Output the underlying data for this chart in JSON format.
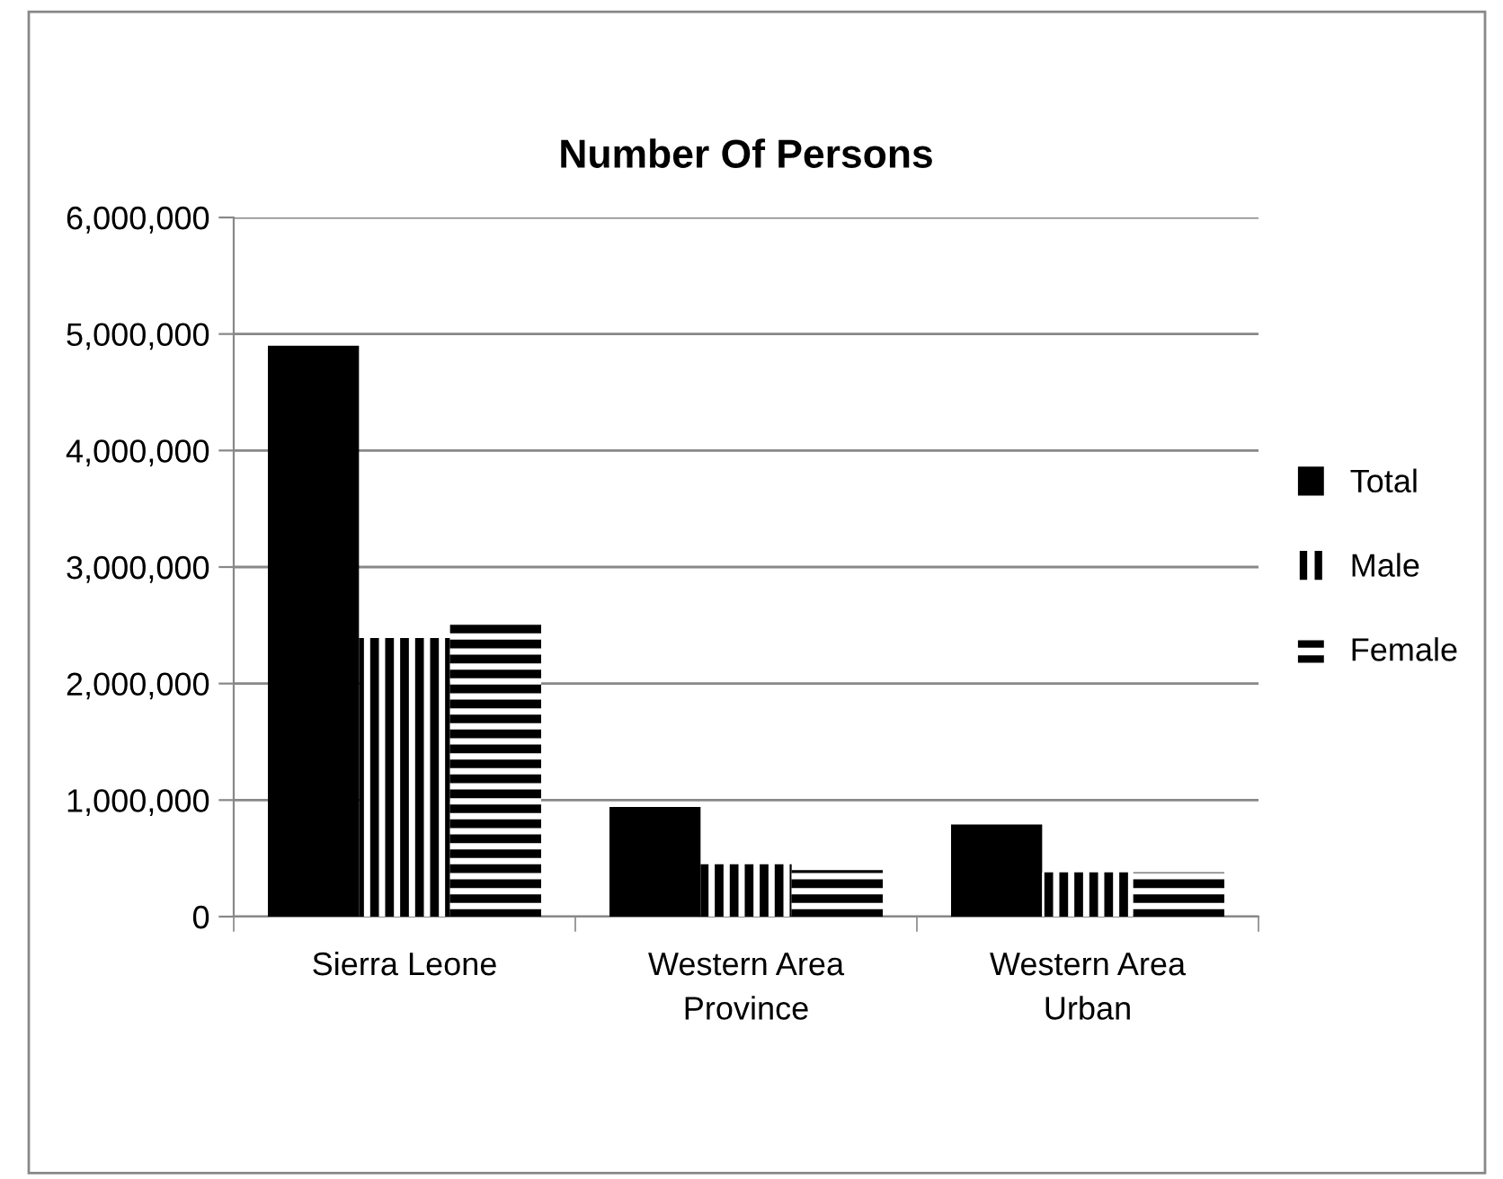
{
  "chart_data": {
    "type": "bar",
    "title": "Number Of Persons",
    "categories": [
      "Sierra Leone",
      "Western Area\nProvince",
      "Western Area\nUrban"
    ],
    "series": [
      {
        "name": "Total",
        "color": "#000000",
        "values": [
          4900000,
          940000,
          790000
        ]
      },
      {
        "name": "Male",
        "color": "#000000",
        "values": [
          2390000,
          450000,
          380000
        ]
      },
      {
        "name": "Female",
        "color": "#000000",
        "values": [
          2530000,
          400000,
          380000
        ]
      }
    ],
    "ylim": [
      0,
      6000000
    ],
    "yticks": [
      {
        "value": 0,
        "label": "0"
      },
      {
        "value": 1000000,
        "label": "1,000,000"
      },
      {
        "value": 2000000,
        "label": "2,000,000"
      },
      {
        "value": 3000000,
        "label": "3,000,000"
      },
      {
        "value": 4000000,
        "label": "4,000,000"
      },
      {
        "value": 5000000,
        "label": "5,000,000"
      },
      {
        "value": 6000000,
        "label": "6,000,000"
      }
    ],
    "grid": "y",
    "legend": "right"
  }
}
